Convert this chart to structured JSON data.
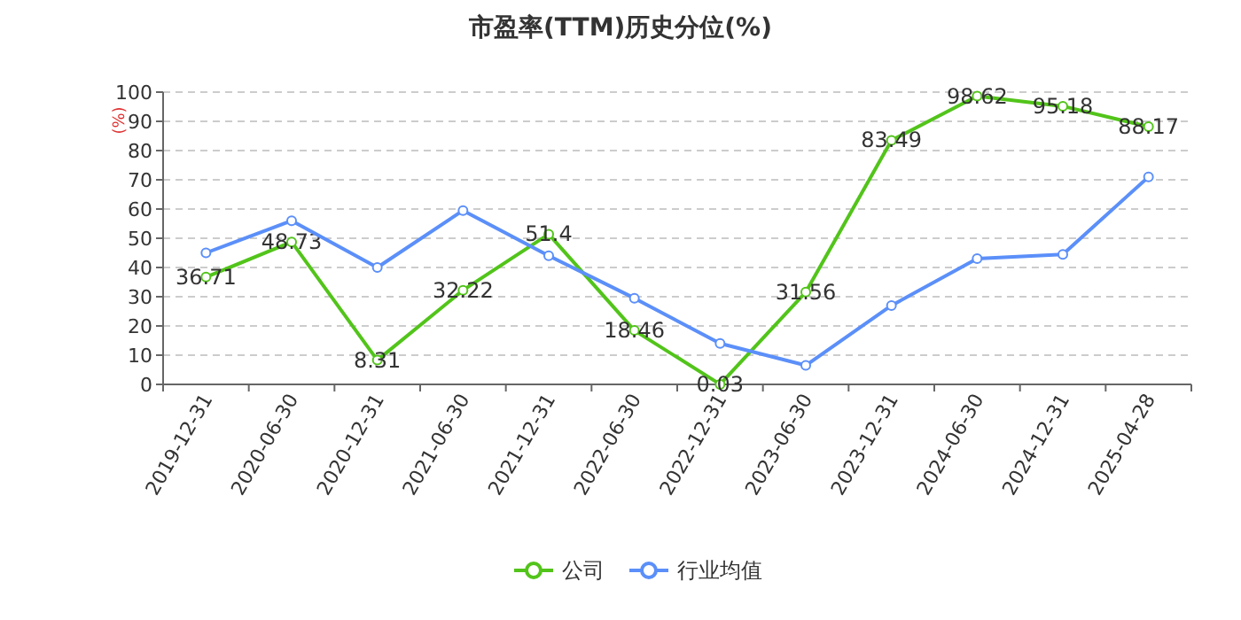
{
  "chart_data": {
    "type": "line",
    "title": "市盈率(TTM)历史分位(%)",
    "ylabel": "(%)",
    "categories": [
      "2019-12-31",
      "2020-06-30",
      "2020-12-31",
      "2021-06-30",
      "2021-12-31",
      "2022-06-30",
      "2022-12-31",
      "2023-06-30",
      "2023-12-31",
      "2024-06-30",
      "2024-12-31",
      "2025-04-28"
    ],
    "series": [
      {
        "name": "公司",
        "color": "#52c41a",
        "values": [
          36.71,
          48.73,
          8.31,
          32.22,
          51.4,
          18.46,
          0.03,
          31.56,
          83.49,
          98.62,
          95.18,
          88.17
        ],
        "value_labels": [
          "36.71",
          "48.73",
          "8.31",
          "32.22",
          "51.4",
          "18.46",
          "0.03",
          "31.56",
          "83.49",
          "98.62",
          "95.18",
          "88.17"
        ]
      },
      {
        "name": "行业均值",
        "color": "#5b8ff9",
        "values": [
          45,
          56,
          40,
          59.5,
          44,
          29.5,
          14,
          6.5,
          27,
          43,
          44.5,
          71
        ]
      }
    ],
    "ylim": [
      0,
      100
    ],
    "yticks": [
      0,
      10,
      20,
      30,
      40,
      50,
      60,
      70,
      80,
      90,
      100
    ],
    "grid": "y",
    "legend": "bottom",
    "marker": "circle",
    "line_style": "solid"
  }
}
